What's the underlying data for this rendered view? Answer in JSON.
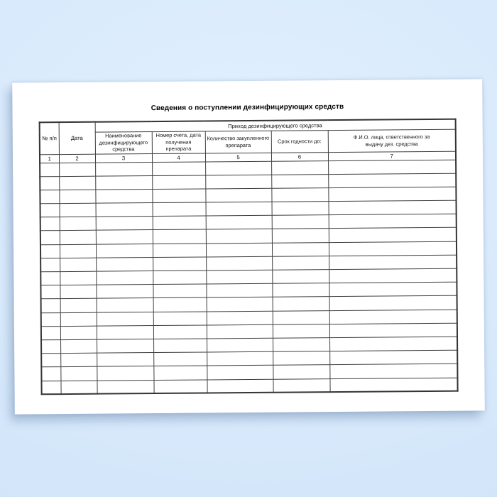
{
  "background": {
    "base_color": "#d7e9fb"
  },
  "page": {
    "paper_color": "#ffffff",
    "title": "Сведения о поступлении дезинфицирующих средств"
  },
  "table": {
    "group_header": "Приход дезинфицирующего средства",
    "border_color": "#3e3e3e",
    "columns": [
      {
        "label": "№ п/п",
        "number": "1"
      },
      {
        "label": "Дата",
        "number": "2"
      },
      {
        "label": "Наименование\nдезинфицирующего\nсредства",
        "number": "3"
      },
      {
        "label": "Номер счета, дата\nполучения препарата",
        "number": "4"
      },
      {
        "label": "Количество закупленного\nпрепарата",
        "number": "5"
      },
      {
        "label": "Срок годности до:",
        "number": "6"
      },
      {
        "label": "Ф.И.О. лица, ответственного за\nвыдачу дез. средства",
        "number": "7"
      }
    ],
    "empty_row_count": 17
  }
}
